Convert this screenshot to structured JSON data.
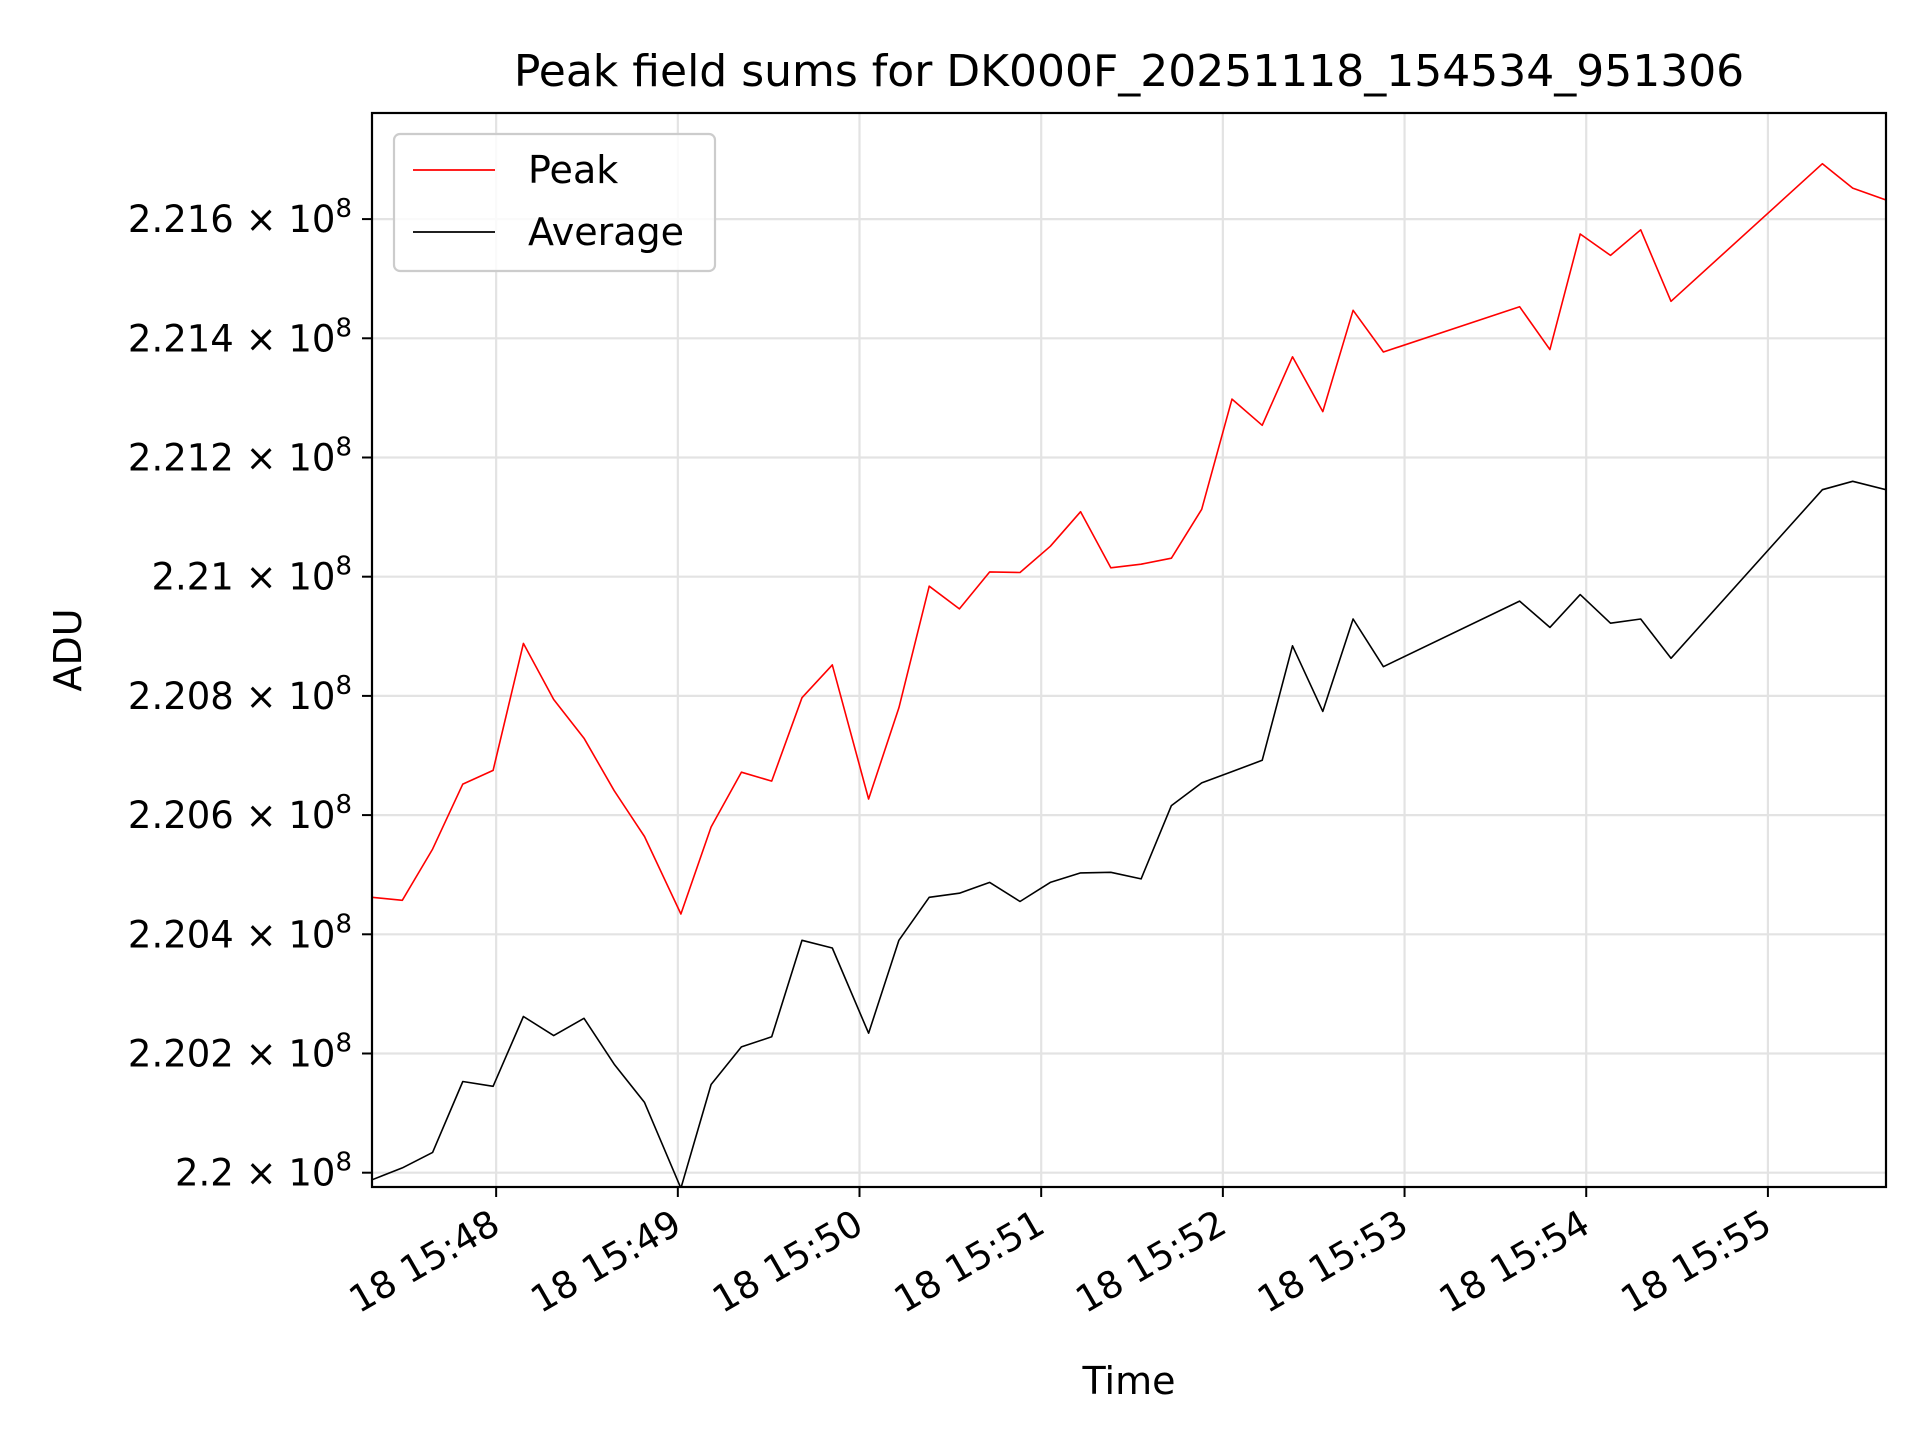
{
  "chart_data": {
    "type": "line",
    "title": "Peak field sums for DK000F_20251118_154534_951306",
    "xlabel": "Time",
    "ylabel": "ADU",
    "x_unit": "time of day on day 18 (HH:MM:SS)",
    "xlim": [
      "15:47:19",
      "15:55:39"
    ],
    "ylim": [
      219976000,
      221778000
    ],
    "x_ticks": [
      {
        "t": "15:48:00",
        "label": "18 15:48"
      },
      {
        "t": "15:49:00",
        "label": "18 15:49"
      },
      {
        "t": "15:50:00",
        "label": "18 15:50"
      },
      {
        "t": "15:51:00",
        "label": "18 15:51"
      },
      {
        "t": "15:52:00",
        "label": "18 15:52"
      },
      {
        "t": "15:53:00",
        "label": "18 15:53"
      },
      {
        "t": "15:54:00",
        "label": "18 15:54"
      },
      {
        "t": "15:55:00",
        "label": "18 15:55"
      }
    ],
    "y_ticks": [
      {
        "value": 220000000,
        "mantissa": "2.2"
      },
      {
        "value": 220200000,
        "mantissa": "2.202"
      },
      {
        "value": 220400000,
        "mantissa": "2.204"
      },
      {
        "value": 220600000,
        "mantissa": "2.206"
      },
      {
        "value": 220800000,
        "mantissa": "2.208"
      },
      {
        "value": 221000000,
        "mantissa": "2.21"
      },
      {
        "value": 221200000,
        "mantissa": "2.212"
      },
      {
        "value": 221400000,
        "mantissa": "2.214"
      },
      {
        "value": 221600000,
        "mantissa": "2.216"
      }
    ],
    "y_tick_suffix": "× 10",
    "y_tick_exponent": "8",
    "grid": true,
    "legend_position": "top-left",
    "series": [
      {
        "name": "Peak",
        "color": "#ff0000",
        "points": [
          [
            "15:47:19",
            220462000
          ],
          [
            "15:47:29",
            220457000
          ],
          [
            "15:47:39",
            220543000
          ],
          [
            "15:47:49",
            220652000
          ],
          [
            "15:47:59",
            220675000
          ],
          [
            "15:48:09",
            220888000
          ],
          [
            "15:48:19",
            220794000
          ],
          [
            "15:48:29",
            220729000
          ],
          [
            "15:48:39",
            220641000
          ],
          [
            "15:48:49",
            220564000
          ],
          [
            "15:49:01",
            220434000
          ],
          [
            "15:49:11",
            220580000
          ],
          [
            "15:49:21",
            220672000
          ],
          [
            "15:49:31",
            220657000
          ],
          [
            "15:49:41",
            220797000
          ],
          [
            "15:49:51",
            220852000
          ],
          [
            "15:50:03",
            220627000
          ],
          [
            "15:50:13",
            220780000
          ],
          [
            "15:50:23",
            220984000
          ],
          [
            "15:50:33",
            220946000
          ],
          [
            "15:50:43",
            221008000
          ],
          [
            "15:50:53",
            221007000
          ],
          [
            "15:51:03",
            221051000
          ],
          [
            "15:51:13",
            221109000
          ],
          [
            "15:51:23",
            221015000
          ],
          [
            "15:51:33",
            221021000
          ],
          [
            "15:51:43",
            221031000
          ],
          [
            "15:51:53",
            221113000
          ],
          [
            "15:52:03",
            221298000
          ],
          [
            "15:52:13",
            221254000
          ],
          [
            "15:52:23",
            221369000
          ],
          [
            "15:52:33",
            221277000
          ],
          [
            "15:52:43",
            221447000
          ],
          [
            "15:52:53",
            221377000
          ],
          [
            "15:53:38",
            221453000
          ],
          [
            "15:53:48",
            221381000
          ],
          [
            "15:53:58",
            221575000
          ],
          [
            "15:54:08",
            221539000
          ],
          [
            "15:54:18",
            221582000
          ],
          [
            "15:54:28",
            221462000
          ],
          [
            "15:55:18",
            221693000
          ],
          [
            "15:55:28",
            221652000
          ],
          [
            "15:55:39",
            221632000
          ]
        ]
      },
      {
        "name": "Average",
        "color": "#000000",
        "points": [
          [
            "15:47:19",
            219988000
          ],
          [
            "15:47:29",
            220008000
          ],
          [
            "15:47:39",
            220034000
          ],
          [
            "15:47:49",
            220153000
          ],
          [
            "15:47:59",
            220145000
          ],
          [
            "15:48:09",
            220262000
          ],
          [
            "15:48:19",
            220230000
          ],
          [
            "15:48:29",
            220259000
          ],
          [
            "15:48:39",
            220182000
          ],
          [
            "15:48:49",
            220118000
          ],
          [
            "15:49:01",
            219974000
          ],
          [
            "15:49:11",
            220148000
          ],
          [
            "15:49:21",
            220211000
          ],
          [
            "15:49:31",
            220228000
          ],
          [
            "15:49:41",
            220390000
          ],
          [
            "15:49:51",
            220377000
          ],
          [
            "15:50:03",
            220234000
          ],
          [
            "15:50:13",
            220390000
          ],
          [
            "15:50:23",
            220462000
          ],
          [
            "15:50:33",
            220469000
          ],
          [
            "15:50:43",
            220487000
          ],
          [
            "15:50:53",
            220455000
          ],
          [
            "15:51:03",
            220487000
          ],
          [
            "15:51:13",
            220503000
          ],
          [
            "15:51:23",
            220504000
          ],
          [
            "15:51:33",
            220493000
          ],
          [
            "15:51:43",
            220616000
          ],
          [
            "15:51:53",
            220654000
          ],
          [
            "15:52:03",
            220673000
          ],
          [
            "15:52:13",
            220692000
          ],
          [
            "15:52:23",
            220884000
          ],
          [
            "15:52:33",
            220774000
          ],
          [
            "15:52:43",
            220929000
          ],
          [
            "15:52:53",
            220849000
          ],
          [
            "15:53:38",
            220959000
          ],
          [
            "15:53:48",
            220915000
          ],
          [
            "15:53:58",
            220970000
          ],
          [
            "15:54:08",
            220922000
          ],
          [
            "15:54:18",
            220929000
          ],
          [
            "15:54:28",
            220863000
          ],
          [
            "15:55:18",
            221146000
          ],
          [
            "15:55:28",
            221160000
          ],
          [
            "15:55:39",
            221146000
          ]
        ]
      }
    ]
  }
}
